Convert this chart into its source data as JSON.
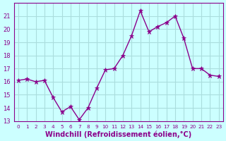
{
  "x": [
    0,
    1,
    2,
    3,
    4,
    5,
    6,
    7,
    8,
    9,
    10,
    11,
    12,
    13,
    14,
    15,
    16,
    17,
    18,
    19,
    20,
    21,
    22,
    23
  ],
  "y": [
    16.1,
    16.2,
    16.0,
    16.1,
    14.8,
    13.7,
    14.1,
    13.1,
    14.0,
    15.5,
    16.9,
    17.0,
    18.0,
    19.5,
    21.4,
    19.8,
    20.2,
    20.5,
    21.0,
    19.3,
    17.0,
    17.0,
    16.5,
    16.4
  ],
  "line_color": "#8B008B",
  "marker": "*",
  "marker_size": 5,
  "bg_color": "#ccffff",
  "grid_color": "#aadddd",
  "xlabel": "Windchill (Refroidissement éolien,°C)",
  "xlabel_color": "#8B008B",
  "ylim": [
    13,
    22
  ],
  "xlim": [
    -0.5,
    23.5
  ],
  "yticks": [
    13,
    14,
    15,
    16,
    17,
    18,
    19,
    20,
    21
  ],
  "xticks": [
    0,
    1,
    2,
    3,
    4,
    5,
    6,
    7,
    8,
    9,
    10,
    11,
    12,
    13,
    14,
    15,
    16,
    17,
    18,
    19,
    20,
    21,
    22,
    23
  ],
  "tick_fontsize": 6,
  "xlabel_fontsize": 7,
  "spine_color": "#8B008B"
}
